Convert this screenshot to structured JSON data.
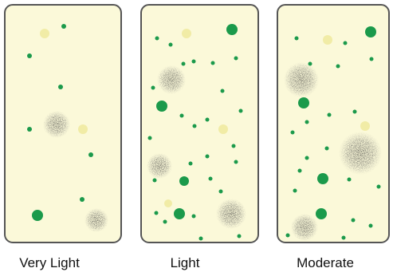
{
  "panels": [
    {
      "label": "Very Light"
    },
    {
      "label": "Light"
    },
    {
      "label": "Moderate"
    }
  ]
}
